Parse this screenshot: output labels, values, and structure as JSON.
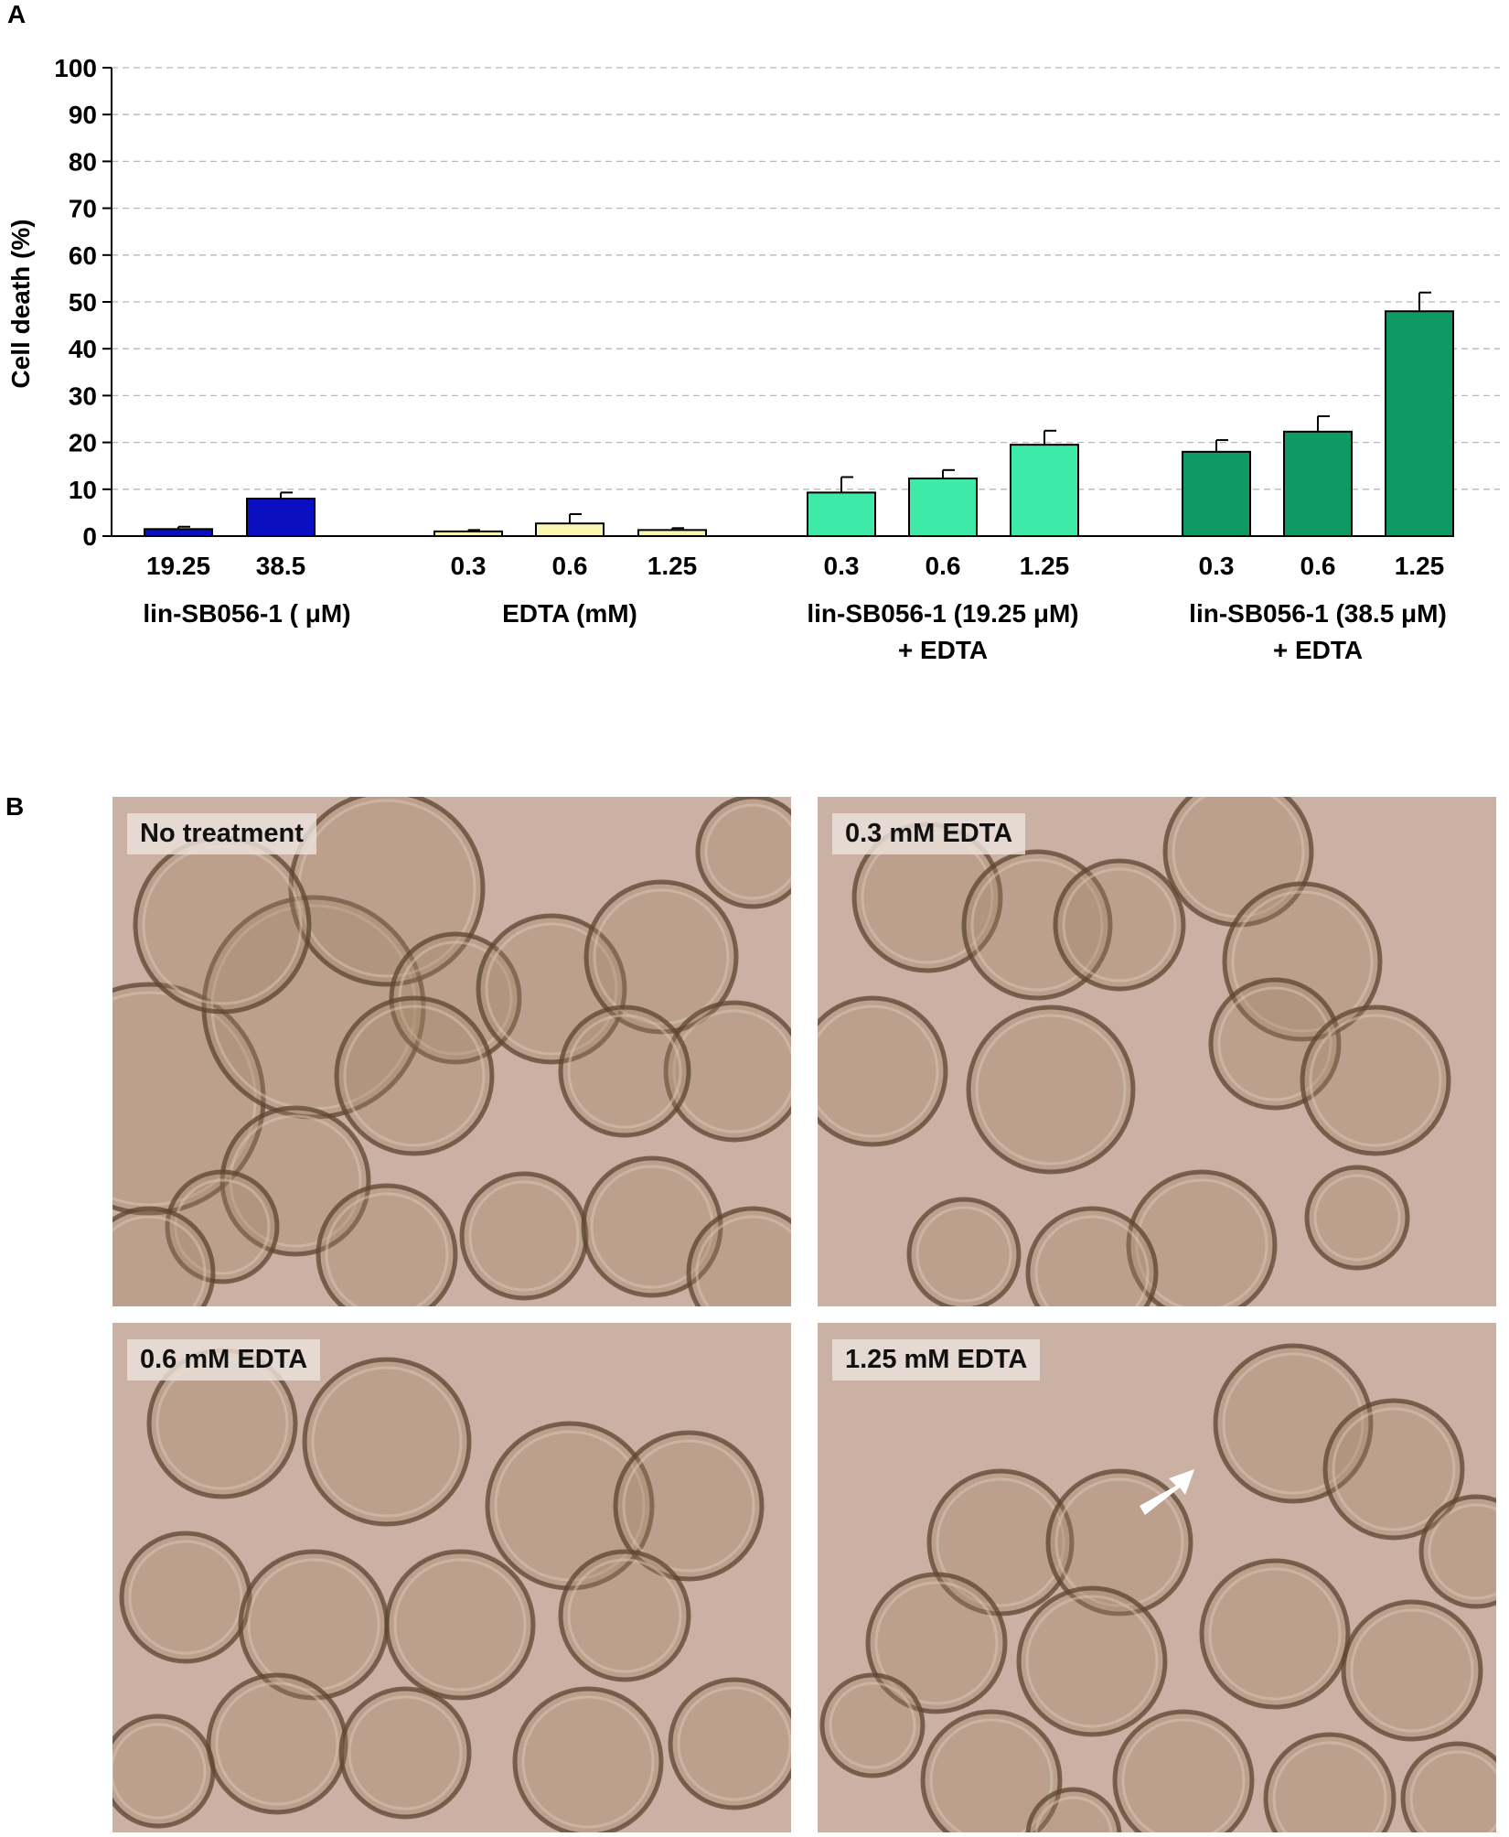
{
  "panel_a_label": "A",
  "panel_b_label": "B",
  "colors": {
    "lin": "#0a10c2",
    "edta": "#faf7b0",
    "combo_low": "#3eeaa8",
    "combo_high": "#0f9a63",
    "grid": "#b8b8b8",
    "micro_bg": "#cbb1a4",
    "cell_edge": "#5b4530",
    "arrow": "#ffffff"
  },
  "chart_data": {
    "type": "bar",
    "ylabel": "Cell death (%)",
    "ylim": [
      0,
      100
    ],
    "yticks": [
      0,
      10,
      20,
      30,
      40,
      50,
      60,
      70,
      80,
      90,
      100
    ],
    "grid": true,
    "groups": [
      {
        "name_lines": [
          "lin-SB056-1 ( μM)"
        ],
        "color": "#0a10c2",
        "bars": [
          {
            "label": "19.25",
            "value": 1.5,
            "error": 0.5
          },
          {
            "label": "38.5",
            "value": 8.0,
            "error": 1.3
          }
        ]
      },
      {
        "name_lines": [
          "EDTA (mM)"
        ],
        "color": "#faf7b0",
        "bars": [
          {
            "label": "0.3",
            "value": 1.0,
            "error": 0.3
          },
          {
            "label": "0.6",
            "value": 2.7,
            "error": 2.0
          },
          {
            "label": "1.25",
            "value": 1.3,
            "error": 0.4
          }
        ]
      },
      {
        "name_lines": [
          "lin-SB056-1 (19.25  μM)",
          "+ EDTA"
        ],
        "color": "#3eeaa8",
        "bars": [
          {
            "label": "0.3",
            "value": 9.3,
            "error": 3.3
          },
          {
            "label": "0.6",
            "value": 12.3,
            "error": 1.8
          },
          {
            "label": "1.25",
            "value": 19.5,
            "error": 3.0
          }
        ]
      },
      {
        "name_lines": [
          "lin-SB056-1 (38.5  μM)",
          "+ EDTA"
        ],
        "color": "#0f9a63",
        "bars": [
          {
            "label": "0.3",
            "value": 18.0,
            "error": 2.5
          },
          {
            "label": "0.6",
            "value": 22.3,
            "error": 3.3
          },
          {
            "label": "1.25",
            "value": 48.0,
            "error": 4.0
          }
        ]
      }
    ]
  },
  "micrographs": [
    {
      "label": "No treatment"
    },
    {
      "label": "0.3 mM EDTA"
    },
    {
      "label": "0.6 mM EDTA"
    },
    {
      "label": "1.25 mM EDTA",
      "arrow": true
    }
  ]
}
